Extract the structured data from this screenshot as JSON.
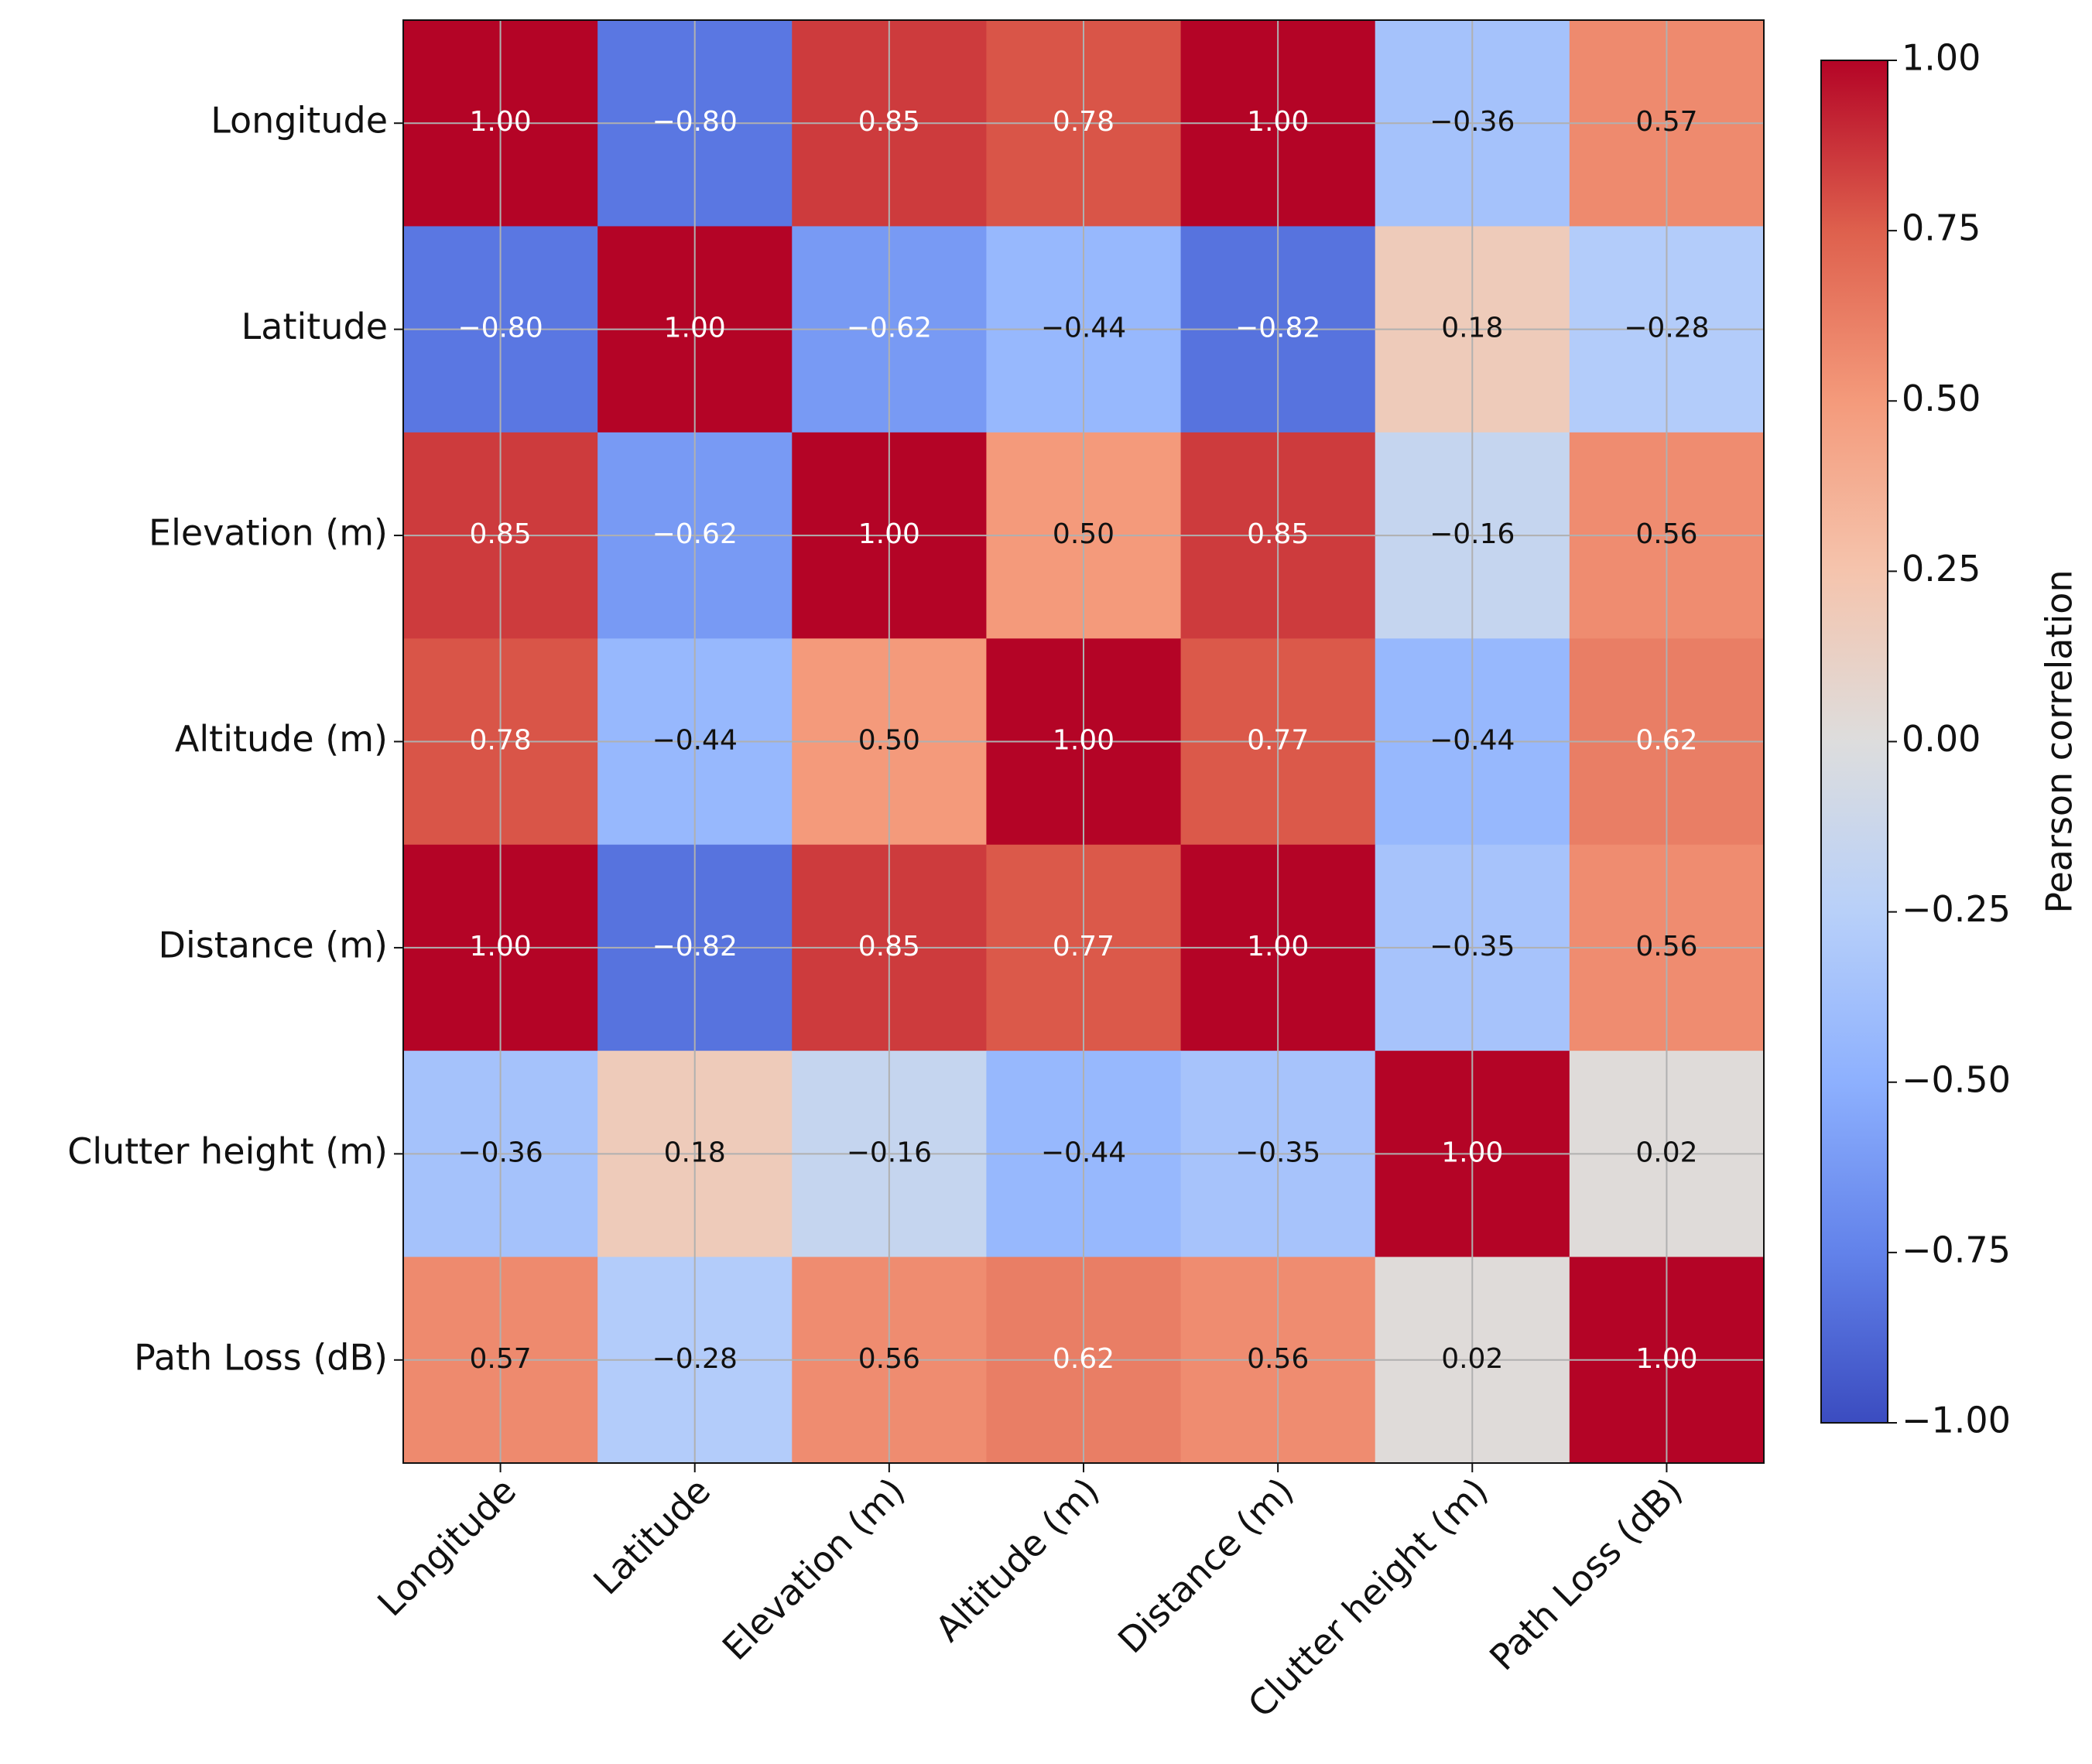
{
  "chart_data": {
    "type": "heatmap",
    "categories": [
      "Longitude",
      "Latitude",
      "Elevation (m)",
      "Altitude (m)",
      "Distance (m)",
      "Clutter height (m)",
      "Path Loss (dB)"
    ],
    "values": [
      [
        1.0,
        -0.8,
        0.85,
        0.78,
        1.0,
        -0.36,
        0.57
      ],
      [
        -0.8,
        1.0,
        -0.62,
        -0.44,
        -0.82,
        0.18,
        -0.28
      ],
      [
        0.85,
        -0.62,
        1.0,
        0.5,
        0.85,
        -0.16,
        0.56
      ],
      [
        0.78,
        -0.44,
        0.5,
        1.0,
        0.77,
        -0.44,
        0.62
      ],
      [
        1.0,
        -0.82,
        0.85,
        0.77,
        1.0,
        -0.35,
        0.56
      ],
      [
        -0.36,
        0.18,
        -0.16,
        -0.44,
        -0.35,
        1.0,
        0.02
      ],
      [
        0.57,
        -0.28,
        0.56,
        0.62,
        0.56,
        0.02,
        1.0
      ]
    ],
    "value_labels": [
      [
        "1.00",
        "−0.80",
        "0.85",
        "0.78",
        "1.00",
        "−0.36",
        "0.57"
      ],
      [
        "−0.80",
        "1.00",
        "−0.62",
        "−0.44",
        "−0.82",
        "0.18",
        "−0.28"
      ],
      [
        "0.85",
        "−0.62",
        "1.00",
        "0.50",
        "0.85",
        "−0.16",
        "0.56"
      ],
      [
        "0.78",
        "−0.44",
        "0.50",
        "1.00",
        "0.77",
        "−0.44",
        "0.62"
      ],
      [
        "1.00",
        "−0.82",
        "0.85",
        "0.77",
        "1.00",
        "−0.35",
        "0.56"
      ],
      [
        "−0.36",
        "0.18",
        "−0.16",
        "−0.44",
        "−0.35",
        "1.00",
        "0.02"
      ],
      [
        "0.57",
        "−0.28",
        "0.56",
        "0.62",
        "0.56",
        "0.02",
        "1.00"
      ]
    ],
    "colormap": "coolwarm",
    "clim": [
      -1,
      1
    ],
    "cticks": [
      {
        "value": 1,
        "label": "1.00"
      },
      {
        "value": 0.75,
        "label": "0.75"
      },
      {
        "value": 0.5,
        "label": "0.50"
      },
      {
        "value": 0.25,
        "label": "0.25"
      },
      {
        "value": 0,
        "label": "0.00"
      },
      {
        "value": -0.25,
        "label": "−0.25"
      },
      {
        "value": -0.5,
        "label": "−0.50"
      },
      {
        "value": -0.75,
        "label": "−0.75"
      },
      {
        "value": -1,
        "label": "−1.00"
      }
    ],
    "colorbar_label": "Pearson correlation",
    "grid": true
  }
}
